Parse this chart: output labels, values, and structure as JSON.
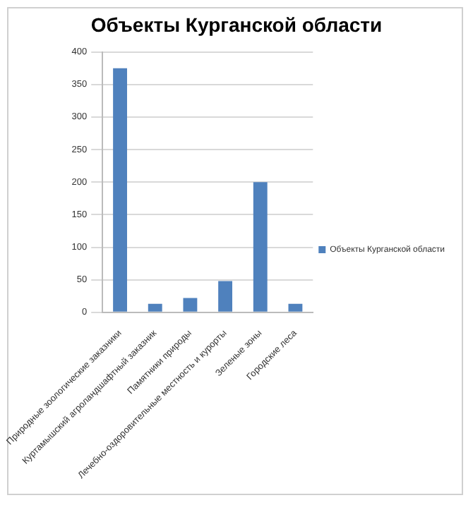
{
  "chart_data": {
    "type": "bar",
    "title": "Объекты Курганской области",
    "categories": [
      "Природные зоологические заказники",
      "Куртамышский агроландшафтный заказник",
      "Памятники природы",
      "Лечебно-оздоровительные местность и курорты",
      "Зеленые зоны",
      "Городские леса"
    ],
    "series": [
      {
        "name": "Объекты Курганской области",
        "color": "#4f81bd",
        "values": [
          375,
          13,
          22,
          48,
          200,
          13
        ]
      }
    ],
    "ylim": [
      0,
      400
    ],
    "yticks": [
      0,
      50,
      100,
      150,
      200,
      250,
      300,
      350,
      400
    ],
    "grid": "y",
    "legend": "right"
  }
}
